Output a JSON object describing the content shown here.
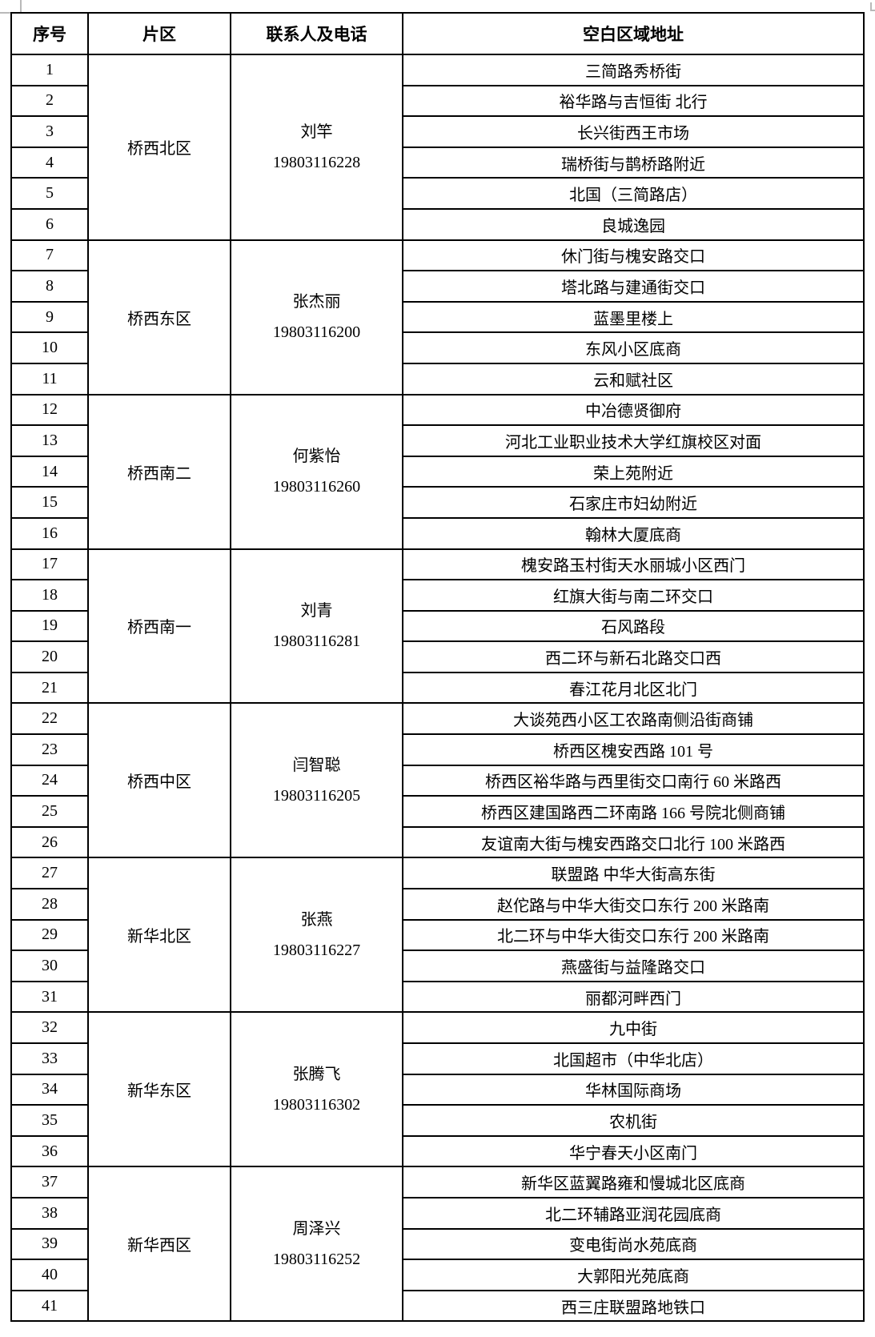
{
  "table": {
    "headers": [
      "序号",
      "片区",
      "联系人及电话",
      "空白区域地址"
    ],
    "groups": [
      {
        "district": "桥西北区",
        "contact_name": "刘竿",
        "contact_phone": "19803116228",
        "rows": [
          {
            "no": "1",
            "address": "三简路秀桥街"
          },
          {
            "no": "2",
            "address": "裕华路与吉恒街 北行"
          },
          {
            "no": "3",
            "address": "长兴街西王市场"
          },
          {
            "no": "4",
            "address": "瑞桥街与鹊桥路附近"
          },
          {
            "no": "5",
            "address": "北国（三简路店）"
          },
          {
            "no": "6",
            "address": "良城逸园"
          }
        ]
      },
      {
        "district": "桥西东区",
        "contact_name": "张杰丽",
        "contact_phone": "19803116200",
        "rows": [
          {
            "no": "7",
            "address": "休门街与槐安路交口"
          },
          {
            "no": "8",
            "address": "塔北路与建通街交口"
          },
          {
            "no": "9",
            "address": "蓝墨里楼上"
          },
          {
            "no": "10",
            "address": "东风小区底商"
          },
          {
            "no": "11",
            "address": "云和赋社区"
          }
        ]
      },
      {
        "district": "桥西南二",
        "contact_name": "何紫怡",
        "contact_phone": "19803116260",
        "rows": [
          {
            "no": "12",
            "address": "中冶德贤御府"
          },
          {
            "no": "13",
            "address": "河北工业职业技术大学红旗校区对面"
          },
          {
            "no": "14",
            "address": "荣上苑附近"
          },
          {
            "no": "15",
            "address": "石家庄市妇幼附近"
          },
          {
            "no": "16",
            "address": "翰林大厦底商"
          }
        ]
      },
      {
        "district": "桥西南一",
        "contact_name": "刘青",
        "contact_phone": "19803116281",
        "rows": [
          {
            "no": "17",
            "address": "槐安路玉村街天水丽城小区西门"
          },
          {
            "no": "18",
            "address": "红旗大街与南二环交口"
          },
          {
            "no": "19",
            "address": "石风路段"
          },
          {
            "no": "20",
            "address": "西二环与新石北路交口西"
          },
          {
            "no": "21",
            "address": "春江花月北区北门"
          }
        ]
      },
      {
        "district": "桥西中区",
        "contact_name": "闫智聪",
        "contact_phone": "19803116205",
        "rows": [
          {
            "no": "22",
            "address": "大谈苑西小区工农路南侧沿街商铺"
          },
          {
            "no": "23",
            "address": "桥西区槐安西路 101 号"
          },
          {
            "no": "24",
            "address": "桥西区裕华路与西里街交口南行 60 米路西"
          },
          {
            "no": "25",
            "address": "桥西区建国路西二环南路 166 号院北侧商铺"
          },
          {
            "no": "26",
            "address": "友谊南大街与槐安西路交口北行 100 米路西"
          }
        ]
      },
      {
        "district": "新华北区",
        "contact_name": "张燕",
        "contact_phone": "19803116227",
        "rows": [
          {
            "no": "27",
            "address": "联盟路 中华大街高东街"
          },
          {
            "no": "28",
            "address": "赵佗路与中华大街交口东行 200 米路南"
          },
          {
            "no": "29",
            "address": "北二环与中华大街交口东行 200 米路南"
          },
          {
            "no": "30",
            "address": "燕盛街与益隆路交口"
          },
          {
            "no": "31",
            "address": "丽都河畔西门"
          }
        ]
      },
      {
        "district": "新华东区",
        "contact_name": "张腾飞",
        "contact_phone": "19803116302",
        "rows": [
          {
            "no": "32",
            "address": "九中街"
          },
          {
            "no": "33",
            "address": "北国超市（中华北店）"
          },
          {
            "no": "34",
            "address": "华林国际商场"
          },
          {
            "no": "35",
            "address": "农机街"
          },
          {
            "no": "36",
            "address": "华宁春天小区南门"
          }
        ]
      },
      {
        "district": "新华西区",
        "contact_name": "周泽兴",
        "contact_phone": "19803116252",
        "rows": [
          {
            "no": "37",
            "address": "新华区蓝翼路雍和慢城北区底商"
          },
          {
            "no": "38",
            "address": "北二环辅路亚润花园底商"
          },
          {
            "no": "39",
            "address": "变电街尚水苑底商"
          },
          {
            "no": "40",
            "address": "大郭阳光苑底商"
          },
          {
            "no": "41",
            "address": "西三庄联盟路地铁口"
          }
        ]
      }
    ]
  },
  "colors": {
    "border": "#000000",
    "text": "#000000",
    "background": "#ffffff",
    "gridline_artifact": "#b9b9b9"
  }
}
